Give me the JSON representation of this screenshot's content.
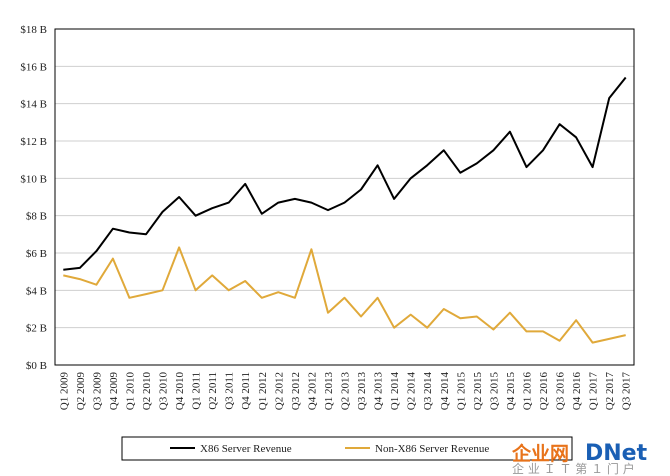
{
  "chart_data": {
    "type": "line",
    "title": "",
    "xlabel": "",
    "ylabel": "",
    "ylim": [
      0,
      18
    ],
    "yticks": [
      0,
      2,
      4,
      6,
      8,
      10,
      12,
      14,
      16,
      18
    ],
    "ytick_labels": [
      "$0 B",
      "$2 B",
      "$4 B",
      "$6 B",
      "$8 B",
      "$10 B",
      "$12 B",
      "$14 B",
      "$16 B",
      "$18 B"
    ],
    "grid": true,
    "legend_position": "bottom",
    "categories": [
      "Q1 2009",
      "Q2 2009",
      "Q3 2009",
      "Q4 2009",
      "Q1 2010",
      "Q2 2010",
      "Q3 2010",
      "Q4 2010",
      "Q1 2011",
      "Q2 2011",
      "Q3 2011",
      "Q4 2011",
      "Q1 2012",
      "Q2 2012",
      "Q3 2012",
      "Q4 2012",
      "Q1 2013",
      "Q2 2013",
      "Q3 2013",
      "Q4 2013",
      "Q1 2014",
      "Q2 2014",
      "Q3 2014",
      "Q4 2014",
      "Q1 2015",
      "Q2 2015",
      "Q3 2015",
      "Q4 2015",
      "Q1 2016",
      "Q2 2016",
      "Q3 2016",
      "Q4 2016",
      "Q1 2017",
      "Q2 2017",
      "Q3 2017"
    ],
    "series": [
      {
        "name": "X86 Server Revenue",
        "color": "#000000",
        "values": [
          5.1,
          5.2,
          6.1,
          7.3,
          7.1,
          7.0,
          8.2,
          9.0,
          8.0,
          8.4,
          8.7,
          9.7,
          8.1,
          8.7,
          8.9,
          8.7,
          8.3,
          8.7,
          9.4,
          10.7,
          8.9,
          10.0,
          10.7,
          11.5,
          10.3,
          10.8,
          11.5,
          12.5,
          10.6,
          11.5,
          12.9,
          12.2,
          10.6,
          14.3,
          15.4
        ]
      },
      {
        "name": "Non-X86 Server Revenue",
        "color": "#e0a93a",
        "values": [
          4.8,
          4.6,
          4.3,
          5.7,
          3.6,
          3.8,
          4.0,
          6.3,
          4.0,
          4.8,
          4.0,
          4.5,
          3.6,
          3.9,
          3.6,
          6.2,
          2.8,
          3.6,
          2.6,
          3.6,
          2.0,
          2.7,
          2.0,
          3.0,
          2.5,
          2.6,
          1.9,
          2.8,
          1.8,
          1.8,
          1.3,
          2.4,
          1.2,
          1.4,
          1.6
        ]
      }
    ]
  },
  "watermark": {
    "brand_left": "企业网",
    "brand_right": "DNet",
    "slogan": "企 业 Ｉ Ｔ 第 １ 门 户",
    "brand_left_color": "#e8731a",
    "brand_right_color": "#1a5fb4"
  }
}
